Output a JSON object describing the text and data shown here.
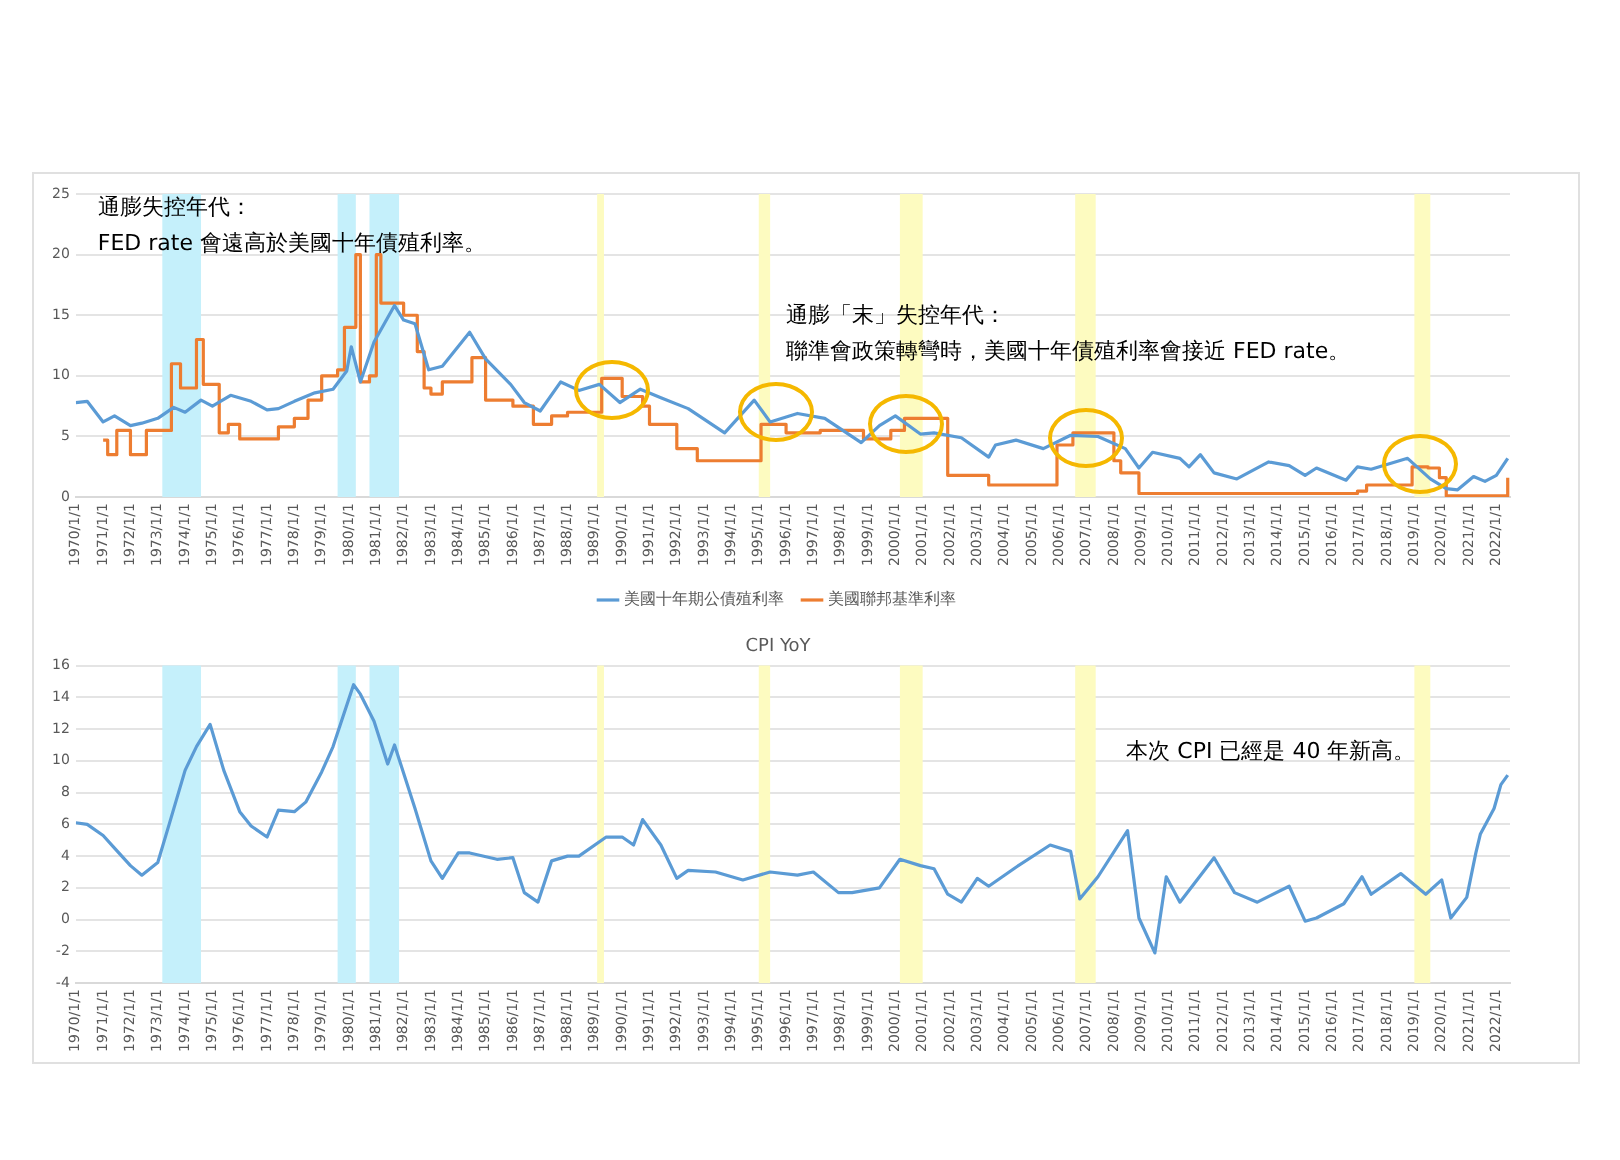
{
  "chart_data": [
    {
      "type": "line",
      "ylim": [
        0,
        25
      ],
      "yticks": [
        0,
        5,
        10,
        15,
        20,
        25
      ],
      "xlim": [
        "1970-01",
        "2022-07"
      ],
      "xticks": [
        {
          "value": "1970-01",
          "label": "1970/1/1"
        },
        {
          "value": "1971-01",
          "label": "1971/1/1"
        },
        {
          "value": "1972-01",
          "label": "1972/1/1"
        },
        {
          "value": "1973-01",
          "label": "1973/1/1"
        },
        {
          "value": "1974-01",
          "label": "1974/1/1"
        },
        {
          "value": "1975-01",
          "label": "1975/1/1"
        },
        {
          "value": "1976-01",
          "label": "1976/1/1"
        },
        {
          "value": "1977-01",
          "label": "1977/1/1"
        },
        {
          "value": "1978-01",
          "label": "1978/1/1"
        },
        {
          "value": "1979-01",
          "label": "1979/1/1"
        },
        {
          "value": "1980-01",
          "label": "1980/1/1"
        },
        {
          "value": "1981-01",
          "label": "1981/1/1"
        },
        {
          "value": "1982-01",
          "label": "1982/1/1"
        },
        {
          "value": "1983-01",
          "label": "1983/1/1"
        },
        {
          "value": "1984-01",
          "label": "1984/1/1"
        },
        {
          "value": "1985-01",
          "label": "1985/1/1"
        },
        {
          "value": "1986-01",
          "label": "1986/1/1"
        },
        {
          "value": "1987-01",
          "label": "1987/1/1"
        },
        {
          "value": "1988-01",
          "label": "1988/1/1"
        },
        {
          "value": "1989-01",
          "label": "1989/1/1"
        },
        {
          "value": "1990-01",
          "label": "1990/1/1"
        },
        {
          "value": "1991-01",
          "label": "1991/1/1"
        },
        {
          "value": "1992-01",
          "label": "1992/1/1"
        },
        {
          "value": "1993-01",
          "label": "1993/1/1"
        },
        {
          "value": "1994-01",
          "label": "1994/1/1"
        },
        {
          "value": "1995-01",
          "label": "1995/1/1"
        },
        {
          "value": "1996-01",
          "label": "1996/1/1"
        },
        {
          "value": "1997-01",
          "label": "1997/1/1"
        },
        {
          "value": "1998-01",
          "label": "1998/1/1"
        },
        {
          "value": "1999-01",
          "label": "1999/1/1"
        },
        {
          "value": "2000-01",
          "label": "2000/1/1"
        },
        {
          "value": "2001-01",
          "label": "2001/1/1"
        },
        {
          "value": "2002-01",
          "label": "2002/1/1"
        },
        {
          "value": "2003-01",
          "label": "2003/1/1"
        },
        {
          "value": "2004-01",
          "label": "2004/1/1"
        },
        {
          "value": "2005-01",
          "label": "2005/1/1"
        },
        {
          "value": "2006-01",
          "label": "2006/1/1"
        },
        {
          "value": "2007-01",
          "label": "2007/1/1"
        },
        {
          "value": "2008-01",
          "label": "2008/1/1"
        },
        {
          "value": "2009-01",
          "label": "2009/1/1"
        },
        {
          "value": "2010-01",
          "label": "2010/1/1"
        },
        {
          "value": "2011-01",
          "label": "2011/1/1"
        },
        {
          "value": "2012-01",
          "label": "2012/1/1"
        },
        {
          "value": "2013-01",
          "label": "2013/1/1"
        },
        {
          "value": "2014-01",
          "label": "2014/1/1"
        },
        {
          "value": "2015-01",
          "label": "2015/1/1"
        },
        {
          "value": "2016-01",
          "label": "2016/1/1"
        },
        {
          "value": "2017-01",
          "label": "2017/1/1"
        },
        {
          "value": "2018-01",
          "label": "2018/1/1"
        },
        {
          "value": "2019-01",
          "label": "2019/1/1"
        },
        {
          "value": "2020-01",
          "label": "2020/1/1"
        },
        {
          "value": "2021-01",
          "label": "2021/1/1"
        },
        {
          "value": "2022-01",
          "label": "2022/1/1"
        }
      ],
      "grid": "y",
      "legend": "bottom",
      "bands": [
        {
          "axis": "x",
          "from": "1973-03",
          "to": "1974-08",
          "color": "#c5f0fb"
        },
        {
          "axis": "x",
          "from": "1979-08",
          "to": "1980-04",
          "color": "#c5f0fb"
        },
        {
          "axis": "x",
          "from": "1980-10",
          "to": "1981-11",
          "color": "#c5f0fb"
        },
        {
          "axis": "x",
          "from": "1989-02",
          "to": "1989-05",
          "color": "#fdfbc0"
        },
        {
          "axis": "x",
          "from": "1995-01",
          "to": "1995-06",
          "color": "#fdfbc0"
        },
        {
          "axis": "x",
          "from": "2000-03",
          "to": "2001-01",
          "color": "#fdfbc0"
        },
        {
          "axis": "x",
          "from": "2006-08",
          "to": "2007-05",
          "color": "#fdfbc0"
        },
        {
          "axis": "x",
          "from": "2019-01",
          "to": "2019-08",
          "color": "#fdfbc0"
        }
      ],
      "annotations": [
        "通膨失控年代：",
        "FED rate 會遠高於美國十年債殖利率。",
        "通膨「末」失控年代：",
        "聯準會政策轉彎時，美國十年債殖利率會接近 FED rate。"
      ],
      "series": [
        {
          "name": "美國十年期公債殖利率",
          "type": "line",
          "color": "#5b9bd5",
          "x": [
            "1970-01",
            "1970-06",
            "1971-01",
            "1971-06",
            "1972-01",
            "1972-06",
            "1973-01",
            "1973-08",
            "1974-01",
            "1974-08",
            "1975-01",
            "1975-09",
            "1976-06",
            "1977-01",
            "1977-06",
            "1978-01",
            "1978-10",
            "1979-06",
            "1979-12",
            "1980-02",
            "1980-06",
            "1980-12",
            "1981-09",
            "1982-01",
            "1982-06",
            "1982-12",
            "1983-06",
            "1984-06",
            "1985-01",
            "1985-12",
            "1986-06",
            "1987-01",
            "1987-10",
            "1988-06",
            "1989-03",
            "1989-12",
            "1990-09",
            "1991-06",
            "1992-06",
            "1993-10",
            "1994-11",
            "1995-06",
            "1996-06",
            "1997-06",
            "1998-10",
            "1999-06",
            "2000-01",
            "2000-12",
            "2001-06",
            "2002-06",
            "2003-06",
            "2003-09",
            "2004-06",
            "2005-06",
            "2006-06",
            "2007-06",
            "2008-06",
            "2008-12",
            "2009-06",
            "2010-06",
            "2010-10",
            "2011-03",
            "2011-09",
            "2012-07",
            "2013-09",
            "2014-06",
            "2015-01",
            "2015-06",
            "2016-07",
            "2016-12",
            "2017-06",
            "2018-10",
            "2019-08",
            "2020-03",
            "2020-08",
            "2021-03",
            "2021-08",
            "2022-01",
            "2022-06"
          ],
          "values": [
            7.8,
            7.9,
            6.2,
            6.7,
            5.9,
            6.1,
            6.5,
            7.4,
            7.0,
            8.0,
            7.5,
            8.4,
            7.9,
            7.2,
            7.3,
            7.9,
            8.6,
            8.9,
            10.4,
            12.4,
            9.5,
            12.8,
            15.8,
            14.6,
            14.3,
            10.5,
            10.8,
            13.6,
            11.4,
            9.3,
            7.8,
            7.1,
            9.5,
            8.8,
            9.3,
            7.8,
            8.9,
            8.2,
            7.3,
            5.3,
            8.0,
            6.2,
            6.9,
            6.5,
            4.5,
            5.9,
            6.7,
            5.2,
            5.3,
            4.9,
            3.3,
            4.3,
            4.7,
            4.0,
            5.1,
            5.0,
            4.0,
            2.4,
            3.7,
            3.2,
            2.5,
            3.5,
            2.0,
            1.5,
            2.9,
            2.6,
            1.8,
            2.4,
            1.4,
            2.5,
            2.3,
            3.2,
            1.5,
            0.7,
            0.6,
            1.7,
            1.3,
            1.8,
            3.2
          ]
        },
        {
          "name": "美國聯邦基準利率",
          "type": "step",
          "color": "#ed7d31",
          "x": [
            "1971-01",
            "1971-03",
            "1971-07",
            "1972-01",
            "1972-08",
            "1973-07",
            "1973-11",
            "1974-06",
            "1974-09",
            "1975-04",
            "1975-08",
            "1976-01",
            "1977-06",
            "1978-01",
            "1978-07",
            "1979-01",
            "1979-08",
            "1979-11",
            "1980-04",
            "1980-06",
            "1980-10",
            "1981-01",
            "1981-03",
            "1982-01",
            "1982-07",
            "1982-10",
            "1983-01",
            "1983-06",
            "1984-07",
            "1985-01",
            "1986-01",
            "1986-10",
            "1987-06",
            "1988-01",
            "1989-04",
            "1990-01",
            "1990-10",
            "1991-01",
            "1992-01",
            "1992-10",
            "1994-01",
            "1995-02",
            "1996-01",
            "1997-04",
            "1998-11",
            "1999-11",
            "2000-05",
            "2000-12",
            "2001-12",
            "2003-06",
            "2004-06",
            "2005-12",
            "2006-07",
            "2007-08",
            "2008-01",
            "2008-04",
            "2008-12",
            "2015-12",
            "2016-12",
            "2017-04",
            "2018-12",
            "2019-07",
            "2019-12",
            "2020-03",
            "2022-02",
            "2022-06"
          ],
          "values": [
            4.7,
            3.5,
            5.5,
            3.5,
            5.5,
            11,
            9,
            13,
            9.3,
            5.3,
            6,
            4.8,
            5.8,
            6.5,
            8,
            10,
            10.5,
            14,
            20,
            9.5,
            10,
            20,
            16,
            15,
            12,
            9,
            8.5,
            9.5,
            11.5,
            8,
            7.5,
            6,
            6.7,
            7,
            9.8,
            8.3,
            7.5,
            6,
            4,
            3,
            3,
            6,
            5.3,
            5.5,
            4.8,
            5.5,
            6.5,
            6.5,
            1.8,
            1,
            1,
            4.3,
            5.3,
            5.3,
            3,
            2,
            0.3,
            0.3,
            0.5,
            1,
            2.5,
            2.4,
            1.6,
            0.1,
            0.1,
            1.6
          ]
        }
      ]
    },
    {
      "type": "line",
      "title": "CPI YoY",
      "ylim": [
        -4,
        16
      ],
      "yticks": [
        -4,
        -2,
        0,
        2,
        4,
        6,
        8,
        10,
        12,
        14,
        16
      ],
      "xlim": [
        "1970-01",
        "2022-07"
      ],
      "xticks": [
        {
          "value": "1970-01",
          "label": "1970/1/1"
        },
        {
          "value": "1971-01",
          "label": "1971/1/1"
        },
        {
          "value": "1972-01",
          "label": "1972/1/1"
        },
        {
          "value": "1973-01",
          "label": "1973/1/1"
        },
        {
          "value": "1974-01",
          "label": "1974/1/1"
        },
        {
          "value": "1975-01",
          "label": "1975/1/1"
        },
        {
          "value": "1976-01",
          "label": "1976/1/1"
        },
        {
          "value": "1977-01",
          "label": "1977/1/1"
        },
        {
          "value": "1978-01",
          "label": "1978/1/1"
        },
        {
          "value": "1979-01",
          "label": "1979/1/1"
        },
        {
          "value": "1980-01",
          "label": "1980/1/1"
        },
        {
          "value": "1981-01",
          "label": "1981/1/1"
        },
        {
          "value": "1982-01",
          "label": "1982/1/1"
        },
        {
          "value": "1983-01",
          "label": "1983/1/1"
        },
        {
          "value": "1984-01",
          "label": "1984/1/1"
        },
        {
          "value": "1985-01",
          "label": "1985/1/1"
        },
        {
          "value": "1986-01",
          "label": "1986/1/1"
        },
        {
          "value": "1987-01",
          "label": "1987/1/1"
        },
        {
          "value": "1988-01",
          "label": "1988/1/1"
        },
        {
          "value": "1989-01",
          "label": "1989/1/1"
        },
        {
          "value": "1990-01",
          "label": "1990/1/1"
        },
        {
          "value": "1991-01",
          "label": "1991/1/1"
        },
        {
          "value": "1992-01",
          "label": "1992/1/1"
        },
        {
          "value": "1993-01",
          "label": "1993/1/1"
        },
        {
          "value": "1994-01",
          "label": "1994/1/1"
        },
        {
          "value": "1995-01",
          "label": "1995/1/1"
        },
        {
          "value": "1996-01",
          "label": "1996/1/1"
        },
        {
          "value": "1997-01",
          "label": "1997/1/1"
        },
        {
          "value": "1998-01",
          "label": "1998/1/1"
        },
        {
          "value": "1999-01",
          "label": "1999/1/1"
        },
        {
          "value": "2000-01",
          "label": "2000/1/1"
        },
        {
          "value": "2001-01",
          "label": "2001/1/1"
        },
        {
          "value": "2002-01",
          "label": "2002/1/1"
        },
        {
          "value": "2003-01",
          "label": "2003/1/1"
        },
        {
          "value": "2004-01",
          "label": "2004/1/1"
        },
        {
          "value": "2005-01",
          "label": "2005/1/1"
        },
        {
          "value": "2006-01",
          "label": "2006/1/1"
        },
        {
          "value": "2007-01",
          "label": "2007/1/1"
        },
        {
          "value": "2008-01",
          "label": "2008/1/1"
        },
        {
          "value": "2009-01",
          "label": "2009/1/1"
        },
        {
          "value": "2010-01",
          "label": "2010/1/1"
        },
        {
          "value": "2011-01",
          "label": "2011/1/1"
        },
        {
          "value": "2012-01",
          "label": "2012/1/1"
        },
        {
          "value": "2013-01",
          "label": "2013/1/1"
        },
        {
          "value": "2014-01",
          "label": "2014/1/1"
        },
        {
          "value": "2015-01",
          "label": "2015/1/1"
        },
        {
          "value": "2016-01",
          "label": "2016/1/1"
        },
        {
          "value": "2017-01",
          "label": "2017/1/1"
        },
        {
          "value": "2018-01",
          "label": "2018/1/1"
        },
        {
          "value": "2019-01",
          "label": "2019/1/1"
        },
        {
          "value": "2020-01",
          "label": "2020/1/1"
        },
        {
          "value": "2021-01",
          "label": "2021/1/1"
        },
        {
          "value": "2022-01",
          "label": "2022/1/1"
        }
      ],
      "grid": "y",
      "bands": [
        {
          "axis": "x",
          "from": "1973-03",
          "to": "1974-08",
          "color": "#c5f0fb"
        },
        {
          "axis": "x",
          "from": "1979-08",
          "to": "1980-04",
          "color": "#c5f0fb"
        },
        {
          "axis": "x",
          "from": "1980-10",
          "to": "1981-11",
          "color": "#c5f0fb"
        },
        {
          "axis": "x",
          "from": "1989-02",
          "to": "1989-05",
          "color": "#fdfbc0"
        },
        {
          "axis": "x",
          "from": "1995-01",
          "to": "1995-06",
          "color": "#fdfbc0"
        },
        {
          "axis": "x",
          "from": "2000-03",
          "to": "2001-01",
          "color": "#fdfbc0"
        },
        {
          "axis": "x",
          "from": "2006-08",
          "to": "2007-05",
          "color": "#fdfbc0"
        },
        {
          "axis": "x",
          "from": "2019-01",
          "to": "2019-08",
          "color": "#fdfbc0"
        }
      ],
      "annotations": [
        "本次 CPI 已經是 40 年新高。"
      ],
      "series": [
        {
          "type": "line",
          "color": "#5b9bd5",
          "x": [
            "1970-01",
            "1970-06",
            "1971-01",
            "1971-06",
            "1972-01",
            "1972-06",
            "1973-01",
            "1973-06",
            "1974-01",
            "1974-06",
            "1974-12",
            "1975-06",
            "1976-01",
            "1976-06",
            "1977-01",
            "1977-06",
            "1978-01",
            "1978-06",
            "1979-01",
            "1979-06",
            "1980-03",
            "1980-06",
            "1980-12",
            "1981-06",
            "1981-09",
            "1982-06",
            "1983-01",
            "1983-06",
            "1984-01",
            "1984-06",
            "1985-06",
            "1986-01",
            "1986-06",
            "1986-12",
            "1987-06",
            "1988-01",
            "1988-06",
            "1989-06",
            "1990-01",
            "1990-06",
            "1990-10",
            "1991-06",
            "1992-01",
            "1992-06",
            "1993-06",
            "1994-06",
            "1995-06",
            "1996-06",
            "1997-01",
            "1997-12",
            "1998-06",
            "1999-06",
            "2000-03",
            "2000-12",
            "2001-06",
            "2001-12",
            "2002-06",
            "2003-01",
            "2003-06",
            "2004-06",
            "2005-09",
            "2006-06",
            "2006-10",
            "2007-06",
            "2008-07",
            "2008-12",
            "2009-07",
            "2009-12",
            "2010-06",
            "2011-09",
            "2012-06",
            "2013-04",
            "2014-06",
            "2015-01",
            "2015-06",
            "2016-06",
            "2017-02",
            "2017-06",
            "2018-07",
            "2019-06",
            "2020-01",
            "2020-05",
            "2020-12",
            "2021-04",
            "2021-06",
            "2021-12",
            "2022-03",
            "2022-06"
          ],
          "values": [
            6.1,
            6.0,
            5.3,
            4.5,
            3.4,
            2.8,
            3.6,
            6.0,
            9.4,
            10.9,
            12.3,
            9.4,
            6.8,
            5.9,
            5.2,
            6.9,
            6.8,
            7.4,
            9.3,
            10.9,
            14.8,
            14.2,
            12.5,
            9.8,
            11.0,
            7.0,
            3.7,
            2.6,
            4.2,
            4.2,
            3.8,
            3.9,
            1.7,
            1.1,
            3.7,
            4.0,
            4.0,
            5.2,
            5.2,
            4.7,
            6.3,
            4.7,
            2.6,
            3.1,
            3.0,
            2.5,
            3.0,
            2.8,
            3.0,
            1.7,
            1.7,
            2.0,
            3.8,
            3.4,
            3.2,
            1.6,
            1.1,
            2.6,
            2.1,
            3.3,
            4.7,
            4.3,
            1.3,
            2.7,
            5.6,
            0.1,
            -2.1,
            2.7,
            1.1,
            3.9,
            1.7,
            1.1,
            2.1,
            -0.1,
            0.1,
            1.0,
            2.7,
            1.6,
            2.9,
            1.6,
            2.5,
            0.1,
            1.4,
            4.2,
            5.4,
            7.0,
            8.5,
            9.1
          ]
        }
      ]
    }
  ]
}
